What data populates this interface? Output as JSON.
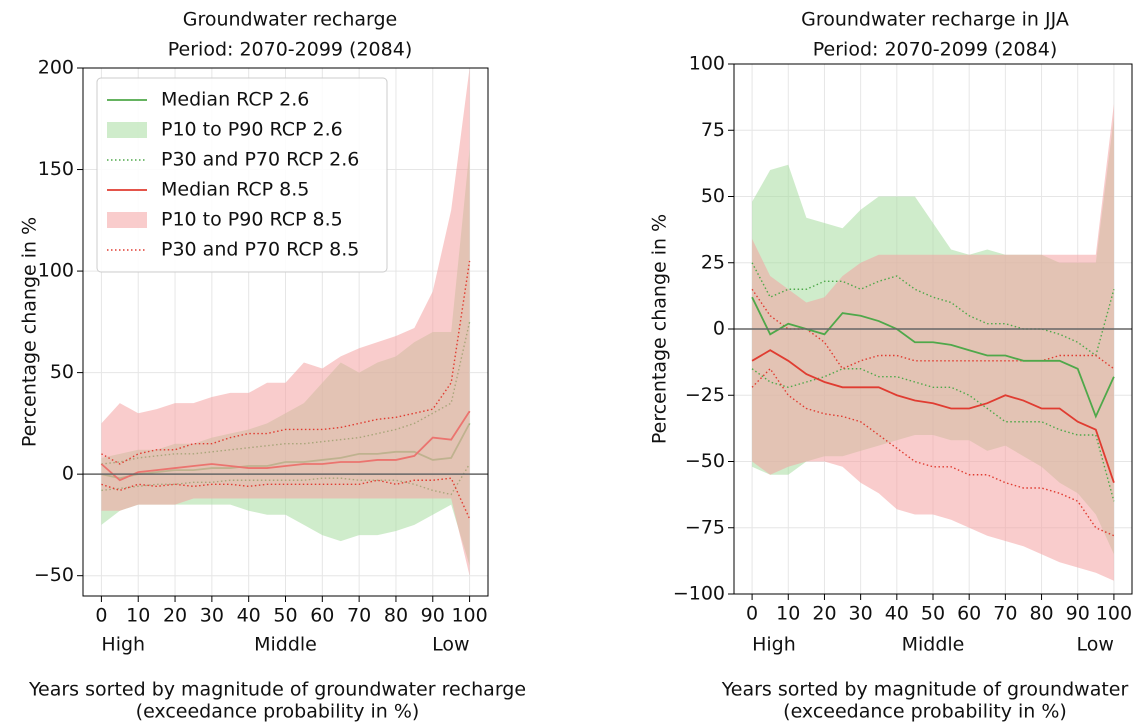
{
  "chart_data": [
    {
      "type": "line",
      "title": "Groundwater recharge",
      "subtitle": "Period: 2070-2099 (2084)",
      "ylabel": "Percentage change in %",
      "xlabel": "Years sorted by magnitude of groundwater recharge",
      "xlabel_note": "(exceedance probability in %)",
      "annotations": [
        "High",
        "Middle",
        "Low"
      ],
      "x": [
        0,
        5,
        10,
        15,
        20,
        25,
        30,
        35,
        40,
        45,
        50,
        55,
        60,
        65,
        70,
        75,
        80,
        85,
        90,
        95,
        100
      ],
      "xlim": [
        -5,
        105
      ],
      "xticks": [
        0,
        10,
        20,
        30,
        40,
        50,
        60,
        70,
        80,
        90,
        100
      ],
      "ylim": [
        -60,
        200
      ],
      "yticks": [
        {
          "value": -50,
          "label": "−50"
        },
        0,
        50,
        100,
        150,
        200
      ],
      "hline": 0,
      "grid": true,
      "legend": "upper left",
      "series": [
        {
          "name": "Median RCP 2.6",
          "style": "line",
          "color": "#4fa84a",
          "values": [
            0,
            -2,
            0,
            1,
            2,
            2,
            3,
            3,
            4,
            4,
            6,
            6,
            7,
            8,
            10,
            10,
            11,
            11,
            7,
            8,
            25
          ]
        },
        {
          "name": "P10 to P90 RCP 2.6",
          "style": "band",
          "color": "#a8dca0",
          "low": [
            -25,
            -18,
            -15,
            -15,
            -15,
            -15,
            -15,
            -15,
            -18,
            -20,
            -20,
            -25,
            -30,
            -33,
            -30,
            -30,
            -28,
            -25,
            -20,
            -15,
            -45
          ],
          "high": [
            8,
            10,
            12,
            12,
            15,
            15,
            18,
            20,
            22,
            25,
            30,
            35,
            45,
            55,
            50,
            55,
            58,
            65,
            70,
            70,
            160
          ]
        },
        {
          "name": "P30 and P70 RCP 2.6",
          "style": "dotted",
          "color": "#4fa84a",
          "low": [
            -8,
            -7,
            -6,
            -5,
            -5,
            -4,
            -4,
            -3,
            -3,
            -3,
            -3,
            -3,
            -2,
            -2,
            -3,
            -3,
            -3,
            -5,
            -8,
            -10,
            5
          ],
          "high": [
            5,
            6,
            8,
            9,
            10,
            10,
            11,
            12,
            13,
            14,
            15,
            15,
            16,
            17,
            18,
            20,
            22,
            25,
            30,
            35,
            75
          ]
        },
        {
          "name": "Median RCP 8.5",
          "style": "line",
          "color": "#e03c31",
          "values": [
            5,
            -3,
            1,
            2,
            3,
            4,
            5,
            4,
            3,
            3,
            4,
            5,
            5,
            6,
            6,
            7,
            7,
            9,
            18,
            17,
            31
          ]
        },
        {
          "name": "P10 to P90 RCP 8.5",
          "style": "band",
          "color": "#f4a3a3",
          "low": [
            -18,
            -18,
            -15,
            -15,
            -15,
            -12,
            -12,
            -12,
            -12,
            -12,
            -12,
            -12,
            -12,
            -12,
            -12,
            -12,
            -12,
            -12,
            -12,
            -12,
            -50
          ],
          "high": [
            25,
            35,
            30,
            32,
            35,
            35,
            38,
            40,
            40,
            45,
            45,
            55,
            52,
            58,
            62,
            65,
            68,
            72,
            90,
            130,
            200
          ]
        },
        {
          "name": "P30 and P70 RCP 8.5",
          "style": "dotted",
          "color": "#e03c31",
          "low": [
            -5,
            -8,
            -5,
            -6,
            -5,
            -6,
            -5,
            -5,
            -6,
            -5,
            -5,
            -5,
            -5,
            -5,
            -5,
            -3,
            -5,
            -3,
            -3,
            -2,
            -22
          ],
          "high": [
            10,
            5,
            10,
            12,
            12,
            15,
            15,
            18,
            20,
            20,
            22,
            22,
            22,
            23,
            25,
            27,
            28,
            30,
            32,
            45,
            105
          ]
        }
      ]
    },
    {
      "type": "line",
      "title": "Groundwater recharge in JJA",
      "subtitle": "Period: 2070-2099 (2084)",
      "ylabel": "Percentage change in %",
      "xlabel": "Years sorted by magnitude of groundwater",
      "xlabel_note": "(exceedance probability in %)",
      "annotations": [
        "High",
        "Middle",
        "Low"
      ],
      "x": [
        0,
        5,
        10,
        15,
        20,
        25,
        30,
        35,
        40,
        45,
        50,
        55,
        60,
        65,
        70,
        75,
        80,
        85,
        90,
        95,
        100
      ],
      "xlim": [
        -5,
        105
      ],
      "xticks": [
        0,
        10,
        20,
        30,
        40,
        50,
        60,
        70,
        80,
        90,
        100
      ],
      "ylim": [
        -100,
        100
      ],
      "yticks": [
        {
          "value": -100,
          "label": "−100"
        },
        {
          "value": -75,
          "label": "−75"
        },
        {
          "value": -50,
          "label": "−50"
        },
        {
          "value": -25,
          "label": "−25"
        },
        0,
        25,
        50,
        75,
        100
      ],
      "hline": 0,
      "grid": true,
      "series": [
        {
          "style": "band",
          "color": "#a8dca0",
          "low": [
            -52,
            -55,
            -55,
            -50,
            -48,
            -48,
            -46,
            -44,
            -42,
            -40,
            -40,
            -42,
            -42,
            -46,
            -44,
            -48,
            -52,
            -58,
            -62,
            -70,
            -85
          ],
          "high": [
            48,
            60,
            62,
            42,
            40,
            38,
            45,
            50,
            50,
            50,
            40,
            30,
            28,
            30,
            28,
            28,
            28,
            25,
            25,
            25,
            80
          ]
        },
        {
          "style": "band",
          "color": "#f4a3a3",
          "low": [
            -50,
            -55,
            -52,
            -50,
            -50,
            -52,
            -58,
            -62,
            -68,
            -70,
            -70,
            -72,
            -75,
            -78,
            -80,
            -82,
            -85,
            -88,
            -90,
            -92,
            -95
          ],
          "high": [
            34,
            20,
            15,
            10,
            12,
            20,
            25,
            28,
            28,
            28,
            28,
            28,
            28,
            28,
            28,
            28,
            28,
            28,
            28,
            28,
            85
          ]
        },
        {
          "style": "dotted",
          "color": "#4fa84a",
          "low": [
            -15,
            -20,
            -22,
            -20,
            -18,
            -15,
            -15,
            -18,
            -18,
            -20,
            -22,
            -22,
            -25,
            -30,
            -35,
            -35,
            -35,
            -38,
            -40,
            -40,
            -65
          ],
          "high": [
            25,
            12,
            15,
            15,
            18,
            18,
            15,
            18,
            20,
            15,
            12,
            10,
            5,
            2,
            2,
            0,
            0,
            -2,
            -5,
            -10,
            15
          ]
        },
        {
          "style": "dotted",
          "color": "#e03c31",
          "low": [
            -22,
            -15,
            -25,
            -30,
            -32,
            -33,
            -35,
            -40,
            -45,
            -50,
            -52,
            -52,
            -55,
            -55,
            -58,
            -60,
            -60,
            -62,
            -65,
            -75,
            -78
          ],
          "high": [
            15,
            5,
            0,
            0,
            -5,
            -15,
            -12,
            -10,
            -10,
            -12,
            -12,
            -12,
            -12,
            -12,
            -12,
            -12,
            -12,
            -10,
            -10,
            -10,
            -15
          ]
        },
        {
          "style": "line",
          "color": "#4fa84a",
          "values": [
            12,
            -2,
            2,
            0,
            -2,
            6,
            5,
            3,
            0,
            -5,
            -5,
            -6,
            -8,
            -10,
            -10,
            -12,
            -12,
            -12,
            -15,
            -33,
            -18
          ]
        },
        {
          "style": "line",
          "color": "#e03c31",
          "values": [
            -12,
            -8,
            -12,
            -17,
            -20,
            -22,
            -22,
            -22,
            -25,
            -27,
            -28,
            -30,
            -30,
            -28,
            -25,
            -27,
            -30,
            -30,
            -35,
            -38,
            -58
          ]
        }
      ]
    }
  ]
}
